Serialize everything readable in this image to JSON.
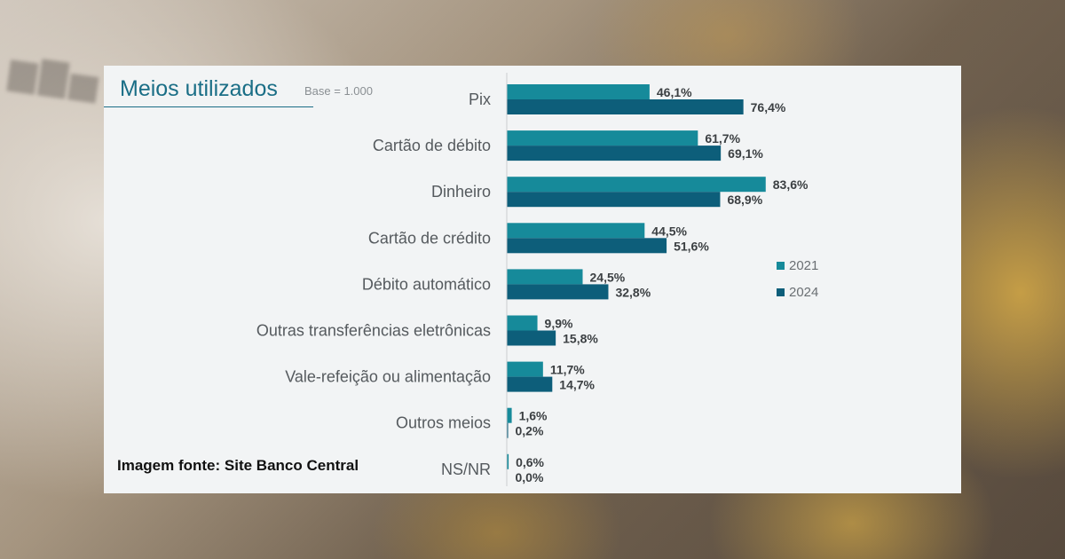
{
  "chart_data": {
    "type": "bar",
    "orientation": "horizontal",
    "title": "Meios utilizados",
    "subtitle": "Base = 1.000",
    "categories": [
      "Pix",
      "Cartão de débito",
      "Dinheiro",
      "Cartão de crédito",
      "Débito automático",
      "Outras transferências eletrônicas",
      "Vale-refeição ou alimentação",
      "Outros meios",
      "NS/NR"
    ],
    "series": [
      {
        "name": "2021",
        "color": "#168a9a",
        "values": [
          46.1,
          61.7,
          83.6,
          44.5,
          24.5,
          9.9,
          11.7,
          1.6,
          0.6
        ],
        "labels": [
          "46,1%",
          "61,7%",
          "83,6%",
          "44,5%",
          "24,5%",
          "9,9%",
          "11,7%",
          "1,6%",
          "0,6%"
        ]
      },
      {
        "name": "2024",
        "color": "#0d5e7a",
        "values": [
          76.4,
          69.1,
          68.9,
          51.6,
          32.8,
          15.8,
          14.7,
          0.2,
          0.0
        ],
        "labels": [
          "76,4%",
          "69,1%",
          "68,9%",
          "51,6%",
          "32,8%",
          "15,8%",
          "14,7%",
          "0,2%",
          "0,0%"
        ]
      }
    ],
    "xlim": [
      0,
      100
    ],
    "legend_position": "right",
    "grid": false
  },
  "source_note": "Imagem fonte: Site Banco Central"
}
